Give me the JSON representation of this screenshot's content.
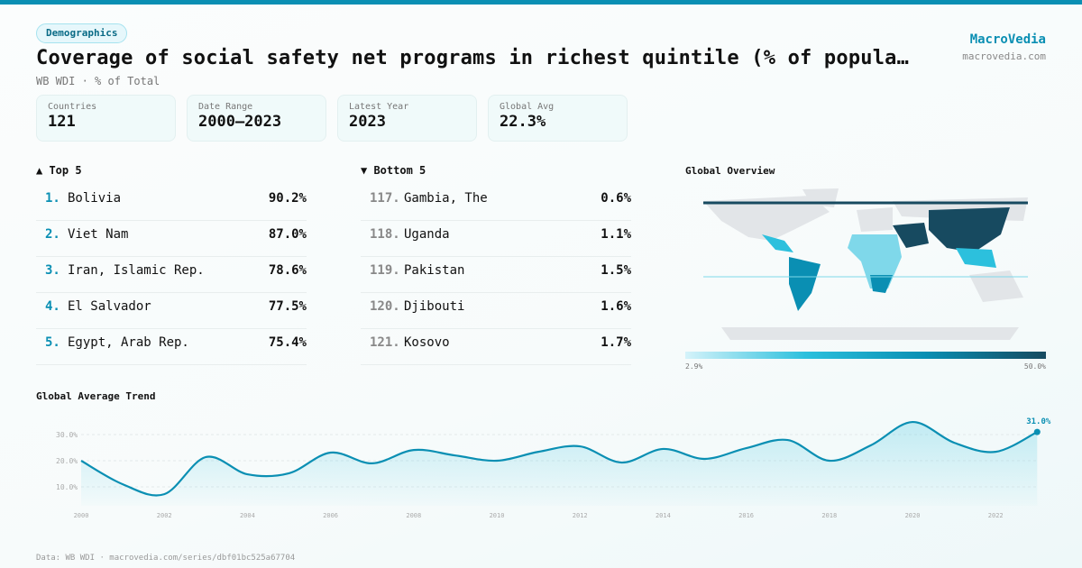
{
  "header": {
    "tag": "Demographics",
    "title": "Coverage of social safety net programs in richest quintile (% of populat…",
    "subtitle": "WB WDI · % of Total",
    "brand": "MacroVedia",
    "brand_url": "macrovedia.com"
  },
  "stats": [
    {
      "label": "Countries",
      "value": "121"
    },
    {
      "label": "Date Range",
      "value": "2000–2023"
    },
    {
      "label": "Latest Year",
      "value": "2023"
    },
    {
      "label": "Global Avg",
      "value": "22.3%"
    }
  ],
  "top5": {
    "title": "▲ Top 5",
    "items": [
      {
        "rank": "1.",
        "name": "Bolivia",
        "value": "90.2%"
      },
      {
        "rank": "2.",
        "name": "Viet Nam",
        "value": "87.0%"
      },
      {
        "rank": "3.",
        "name": "Iran, Islamic Rep.",
        "value": "78.6%"
      },
      {
        "rank": "4.",
        "name": "El Salvador",
        "value": "77.5%"
      },
      {
        "rank": "5.",
        "name": "Egypt, Arab Rep.",
        "value": "75.4%"
      }
    ]
  },
  "bottom5": {
    "title": "▼ Bottom 5",
    "items": [
      {
        "rank": "117.",
        "name": "Gambia, The",
        "value": "0.6%"
      },
      {
        "rank": "118.",
        "name": "Uganda",
        "value": "1.1%"
      },
      {
        "rank": "119.",
        "name": "Pakistan",
        "value": "1.5%"
      },
      {
        "rank": "120.",
        "name": "Djibouti",
        "value": "1.6%"
      },
      {
        "rank": "121.",
        "name": "Kosovo",
        "value": "1.7%"
      }
    ]
  },
  "map": {
    "title": "Global Overview",
    "legend_min": "2.9%",
    "legend_max": "50.0%",
    "colors": [
      "#d5f3fa",
      "#2cc0dd",
      "#0a8fb3",
      "#174a60"
    ]
  },
  "chart_data": {
    "type": "area",
    "title": "Global Average Trend",
    "x": [
      2000,
      2001,
      2002,
      2003,
      2004,
      2005,
      2006,
      2007,
      2008,
      2009,
      2010,
      2011,
      2012,
      2013,
      2014,
      2015,
      2016,
      2017,
      2018,
      2019,
      2020,
      2021,
      2022,
      2023
    ],
    "values": [
      20.0,
      11.0,
      7.2,
      21.4,
      14.8,
      15.2,
      23.1,
      19.0,
      24.1,
      22.0,
      20.0,
      23.4,
      25.5,
      19.3,
      24.5,
      20.7,
      24.8,
      27.9,
      20.0,
      25.9,
      34.8,
      26.9,
      23.4,
      31.0
    ],
    "xticks": [
      "2000",
      "2002",
      "2004",
      "2006",
      "2008",
      "2010",
      "2012",
      "2014",
      "2016",
      "2018",
      "2020",
      "2022"
    ],
    "yticks": [
      "10.0%",
      "20.0%",
      "30.0%"
    ],
    "ylim": [
      0,
      35
    ],
    "grid": true,
    "last_label": "31.0%",
    "color": "#0a8fb3"
  },
  "footer": "Data: WB WDI · macrovedia.com/series/dbf01bc525a67704"
}
